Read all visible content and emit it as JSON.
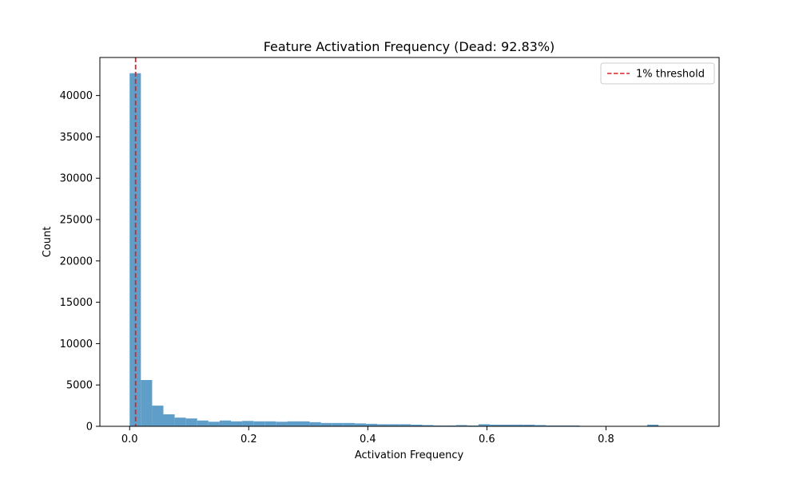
{
  "chart_data": {
    "type": "bar",
    "title": "Feature Activation Frequency (Dead: 92.83%)",
    "xlabel": "Activation Frequency",
    "ylabel": "Count",
    "xlim": [
      -0.05,
      0.99
    ],
    "ylim": [
      0,
      44600
    ],
    "xticks": [
      0.0,
      0.2,
      0.4,
      0.6,
      0.8
    ],
    "xtick_labels": [
      "0.0",
      "0.2",
      "0.4",
      "0.6",
      "0.8"
    ],
    "yticks": [
      0,
      5000,
      10000,
      15000,
      20000,
      25000,
      30000,
      35000,
      40000
    ],
    "ytick_labels": [
      "0",
      "5000",
      "10000",
      "15000",
      "20000",
      "25000",
      "30000",
      "35000",
      "40000"
    ],
    "grid": false,
    "bin_width": 0.0189,
    "bin_start": 0.0,
    "values": [
      42700,
      5600,
      2500,
      1450,
      1050,
      950,
      700,
      550,
      700,
      600,
      650,
      600,
      600,
      550,
      600,
      600,
      500,
      400,
      400,
      400,
      350,
      300,
      250,
      250,
      250,
      200,
      150,
      100,
      100,
      150,
      100,
      250,
      200,
      200,
      200,
      200,
      150,
      100,
      100,
      100,
      50,
      50,
      50,
      50,
      50,
      50,
      200,
      50
    ],
    "bar_color": "#5f9ec9",
    "threshold": {
      "x": 0.01,
      "color": "#d62728",
      "label": "1% threshold"
    },
    "legend_position": "top-right"
  }
}
